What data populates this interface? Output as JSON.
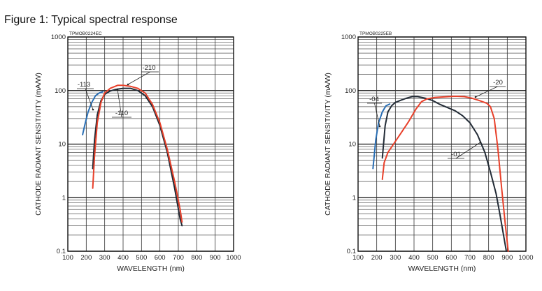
{
  "figure_title": "Figure 1: Typical spectral response",
  "chart_data": [
    {
      "type": "line",
      "code": "TPMOB0224EC",
      "xlabel": "WAVELENGTH (nm)",
      "ylabel": "CATHODE RADIANT SENSITIVITY (mA/W)",
      "xlim": [
        100,
        1000
      ],
      "ylim": [
        0.1,
        1000
      ],
      "yscale": "log",
      "x_ticks": [
        "100",
        "200",
        "300",
        "400",
        "500",
        "600",
        "700",
        "800",
        "900",
        "1000"
      ],
      "y_ticks": [
        "0.1",
        "1",
        "10",
        "100",
        "1000"
      ],
      "grid": true,
      "colors": {
        "-113": "#2a6fb5",
        "-110": "#222b36",
        "-210": "#e8402a"
      },
      "series": [
        {
          "name": "-113",
          "x": [
            180,
            195,
            210,
            230,
            250,
            270,
            290
          ],
          "y": [
            15,
            25,
            40,
            60,
            80,
            90,
            95
          ]
        },
        {
          "name": "-110",
          "x": [
            235,
            245,
            260,
            280,
            300,
            330,
            360,
            400,
            440,
            480,
            520,
            560,
            600,
            640,
            680,
            710,
            720
          ],
          "y": [
            3.5,
            12,
            35,
            65,
            85,
            98,
            105,
            110,
            110,
            100,
            80,
            50,
            22,
            7,
            1.5,
            0.4,
            0.3
          ]
        },
        {
          "name": "-210",
          "x": [
            235,
            245,
            260,
            280,
            300,
            330,
            370,
            400,
            440,
            480,
            520,
            560,
            600,
            640,
            680,
            710,
            720
          ],
          "y": [
            1.5,
            6,
            25,
            60,
            90,
            110,
            125,
            125,
            120,
            110,
            90,
            55,
            25,
            8,
            2,
            0.6,
            0.35
          ]
        }
      ],
      "annotations": [
        "-113",
        "-110",
        "-210"
      ]
    },
    {
      "type": "line",
      "code": "TPMOB0225EB",
      "xlabel": "WAVELENGTH (nm)",
      "ylabel": "CATHODE RADIANT SENSITIVITY (mA/W)",
      "xlim": [
        100,
        1000
      ],
      "ylim": [
        0.1,
        1000
      ],
      "yscale": "log",
      "x_ticks": [
        "100",
        "200",
        "300",
        "400",
        "500",
        "600",
        "700",
        "800",
        "900",
        "1000"
      ],
      "y_ticks": [
        "0.1",
        "1",
        "10",
        "100",
        "1000"
      ],
      "grid": true,
      "colors": {
        "-04": "#2a6fb5",
        "-01": "#222b36",
        "-20": "#e8402a"
      },
      "series": [
        {
          "name": "-04",
          "x": [
            180,
            195,
            210,
            230,
            250,
            270
          ],
          "y": [
            3.5,
            12,
            25,
            40,
            52,
            56
          ]
        },
        {
          "name": "-01",
          "x": [
            230,
            245,
            260,
            280,
            300,
            330,
            360,
            390,
            420,
            460,
            500,
            540,
            580,
            620,
            660,
            700,
            740,
            780,
            810,
            840,
            860,
            880,
            895
          ],
          "y": [
            5.5,
            22,
            40,
            52,
            60,
            66,
            72,
            77,
            77,
            72,
            65,
            55,
            48,
            42,
            34,
            25,
            15,
            7,
            3,
            1.2,
            0.5,
            0.2,
            0.1
          ]
        },
        {
          "name": "-20",
          "x": [
            230,
            240,
            260,
            290,
            330,
            370,
            410,
            440,
            470,
            510,
            560,
            620,
            670,
            710,
            750,
            790,
            810,
            830,
            850,
            870,
            890,
            905
          ],
          "y": [
            2.2,
            4.5,
            7,
            10,
            16,
            26,
            45,
            62,
            70,
            74,
            76,
            78,
            77,
            72,
            65,
            58,
            50,
            30,
            8,
            1.5,
            0.3,
            0.1
          ]
        }
      ],
      "annotations": [
        "-04",
        "-01",
        "-20"
      ]
    }
  ]
}
